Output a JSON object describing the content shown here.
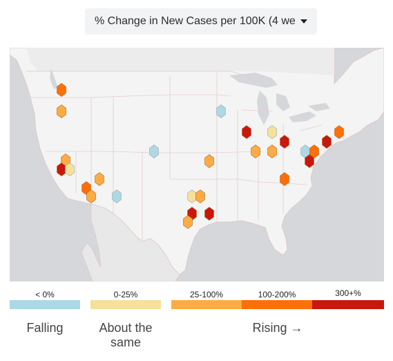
{
  "dropdown": {
    "label": "% Change in New Cases per 100K (4 we"
  },
  "legend": {
    "bins": [
      {
        "label": "< 0%",
        "color": "#add8e6"
      },
      {
        "label": "0-25%",
        "color": "#f5e199"
      },
      {
        "label": "25-100%",
        "color": "#fdab44"
      },
      {
        "label": "100-200%",
        "color": "#fd6f09"
      },
      {
        "label": "300+%",
        "color": "#c8180e"
      }
    ],
    "falling": "Falling",
    "same_line1": "About the",
    "same_line2": "same",
    "rising": "Rising →"
  },
  "map": {
    "markers": [
      {
        "id": "wa-seattle",
        "bin": 3
      },
      {
        "id": "or-portland",
        "bin": 2
      },
      {
        "id": "ca-sacramento",
        "bin": 2
      },
      {
        "id": "ca-sf",
        "bin": 4
      },
      {
        "id": "ca-san-jose",
        "bin": 1
      },
      {
        "id": "ca-la",
        "bin": 3
      },
      {
        "id": "ca-san-diego",
        "bin": 2
      },
      {
        "id": "nv-las-vegas",
        "bin": 2
      },
      {
        "id": "az-phoenix",
        "bin": 0
      },
      {
        "id": "ut-slc",
        "bin": 0
      },
      {
        "id": "mn-minneapolis",
        "bin": 0
      },
      {
        "id": "mo-kansas-city",
        "bin": 2
      },
      {
        "id": "tx-dallas",
        "bin": 1
      },
      {
        "id": "tx-fort-worth",
        "bin": 2
      },
      {
        "id": "tx-austin",
        "bin": 4
      },
      {
        "id": "tx-houston",
        "bin": 4
      },
      {
        "id": "tx-san-antonio",
        "bin": 2
      },
      {
        "id": "il-chicago",
        "bin": 4
      },
      {
        "id": "mi-detroit",
        "bin": 1
      },
      {
        "id": "in-indianapolis",
        "bin": 2
      },
      {
        "id": "oh-columbus",
        "bin": 2
      },
      {
        "id": "pa-pittsburgh",
        "bin": 4
      },
      {
        "id": "dc-washington",
        "bin": 0
      },
      {
        "id": "pa-philadelphia",
        "bin": 3
      },
      {
        "id": "va-richmond",
        "bin": 4
      },
      {
        "id": "ny-nyc",
        "bin": 4
      },
      {
        "id": "ma-boston",
        "bin": 3
      },
      {
        "id": "ga-atlanta",
        "bin": 3
      }
    ]
  }
}
